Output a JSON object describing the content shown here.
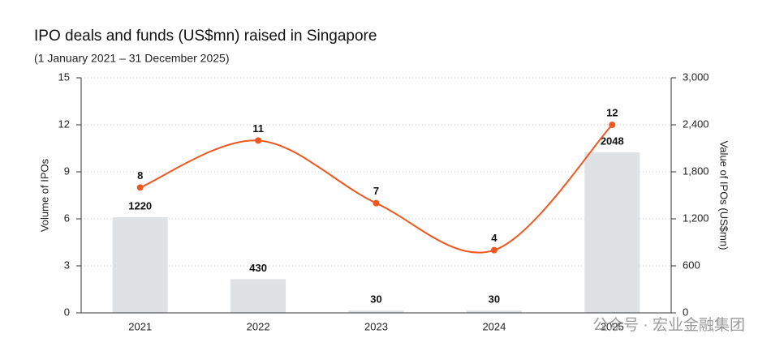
{
  "chart_data": {
    "type": "bar-line",
    "title": "IPO deals and funds (US$mn) raised in Singapore",
    "subtitle": "(1 January 2021 – 31 December 2025)",
    "y_label": "Volume of IPOs",
    "y2_label": "Value of IPOs (US$mn)",
    "categories": [
      "2021",
      "2022",
      "2023",
      "2024",
      "2025"
    ],
    "series": [
      {
        "type": "bar",
        "axis": "y2",
        "color": "#dfe2e5",
        "values": [
          1220,
          430,
          30,
          30,
          2048
        ]
      },
      {
        "type": "line",
        "color": "#f0561d",
        "values": [
          8,
          11,
          7,
          4,
          12
        ]
      }
    ],
    "ylim": [
      0,
      15
    ],
    "yticks": [
      0,
      3,
      6,
      9,
      12,
      15
    ],
    "y2lim": [
      0,
      3000
    ],
    "y2ticks": [
      0,
      {
        "value": 600,
        "label": "600"
      },
      {
        "value": 1200,
        "label": "1,200"
      },
      {
        "value": 1800,
        "label": "1,800"
      },
      {
        "value": 2400,
        "label": "2,400"
      },
      {
        "value": 3000,
        "label": "3,000"
      }
    ],
    "grid": true,
    "watermark": "公众号 · 宏业金融集团"
  }
}
